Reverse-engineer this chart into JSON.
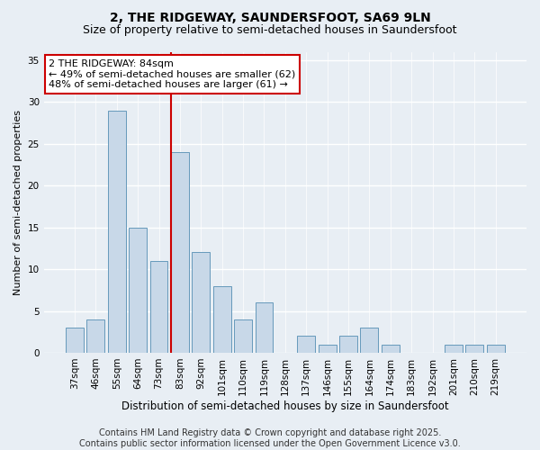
{
  "title1": "2, THE RIDGEWAY, SAUNDERSFOOT, SA69 9LN",
  "title2": "Size of property relative to semi-detached houses in Saundersfoot",
  "xlabel": "Distribution of semi-detached houses by size in Saundersfoot",
  "ylabel": "Number of semi-detached properties",
  "categories": [
    "37sqm",
    "46sqm",
    "55sqm",
    "64sqm",
    "73sqm",
    "83sqm",
    "92sqm",
    "101sqm",
    "110sqm",
    "119sqm",
    "128sqm",
    "137sqm",
    "146sqm",
    "155sqm",
    "164sqm",
    "174sqm",
    "183sqm",
    "192sqm",
    "201sqm",
    "210sqm",
    "219sqm"
  ],
  "values": [
    3,
    4,
    29,
    15,
    11,
    24,
    12,
    8,
    4,
    6,
    0,
    2,
    1,
    2,
    3,
    1,
    0,
    0,
    1,
    1,
    1
  ],
  "bar_color": "#c8d8e8",
  "bar_edge_color": "#6699bb",
  "vline_color": "#cc0000",
  "vline_x_index": 5,
  "annotation_text": "2 THE RIDGEWAY: 84sqm\n← 49% of semi-detached houses are smaller (62)\n48% of semi-detached houses are larger (61) →",
  "annotation_box_edgecolor": "#cc0000",
  "footer": "Contains HM Land Registry data © Crown copyright and database right 2025.\nContains public sector information licensed under the Open Government Licence v3.0.",
  "ylim": [
    0,
    36
  ],
  "yticks": [
    0,
    5,
    10,
    15,
    20,
    25,
    30,
    35
  ],
  "bg_color": "#e8eef4",
  "plot_bg_color": "#e8eef4",
  "grid_color": "#ffffff",
  "title1_fontsize": 10,
  "title2_fontsize": 9,
  "xlabel_fontsize": 8.5,
  "ylabel_fontsize": 8,
  "tick_fontsize": 7.5,
  "annotation_fontsize": 8,
  "footer_fontsize": 7
}
